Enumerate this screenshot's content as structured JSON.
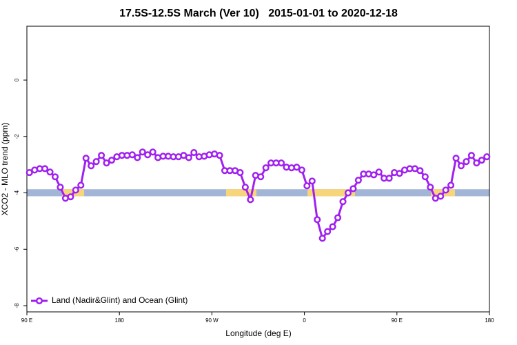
{
  "chart_data": {
    "type": "line",
    "title": "17.5S-12.5S March (Ver 10)   2015-01-01 to 2020-12-18",
    "x_label": "Longitude (deg E)",
    "y_label": "XCO2 - MLO trend (ppm)",
    "xlim": [
      90,
      540
    ],
    "ylim": [
      -8.22,
      1.91
    ],
    "xticks": [
      {
        "value": 90,
        "label": "90 E"
      },
      {
        "value": 180,
        "label": "180"
      },
      {
        "value": 270,
        "label": "90 W"
      },
      {
        "value": 360,
        "label": "0"
      },
      {
        "value": 450,
        "label": "90 E"
      },
      {
        "value": 540,
        "label": "180"
      }
    ],
    "yticks": [
      -8,
      -6,
      -4,
      -2,
      0
    ],
    "legend": "bottom-left",
    "surface_band": {
      "ylim": [
        -4.12,
        -3.87
      ],
      "ocean_color": "#a3b5d6",
      "land_color": "#f7d57a",
      "land_spans": [
        [
          124.2,
          145.7
        ],
        [
          283.8,
          313.3
        ],
        [
          363,
          409.2
        ],
        [
          483,
          506.5
        ]
      ]
    },
    "series": [
      {
        "name": "Land (Nadir&Glint) and Ocean (Glint)",
        "color": "#a020f0",
        "x": [
          92.5,
          97.5,
          102.5,
          107.5,
          112.5,
          117.5,
          122.5,
          127.5,
          132.5,
          137.5,
          142.5,
          147.5,
          152.5,
          157.5,
          162.5,
          167.5,
          172.5,
          177.5,
          182.5,
          187.5,
          192.5,
          197.5,
          202.5,
          207.5,
          212.5,
          217.5,
          222.5,
          227.5,
          232.5,
          237.5,
          242.5,
          247.5,
          252.5,
          257.5,
          262.5,
          267.5,
          272.5,
          277.5,
          282.5,
          287.5,
          292.5,
          297.5,
          302.5,
          307.5,
          312.5,
          317.5,
          322.5,
          327.5,
          332.5,
          337.5,
          342.5,
          347.5,
          352.5,
          357.5,
          362.5,
          367.5,
          372.5,
          377.5,
          382.5,
          387.5,
          392.5,
          397.5,
          402.5,
          407.5,
          412.5,
          417.5,
          422.5,
          427.5,
          432.5,
          437.5,
          442.5,
          447.5,
          452.5,
          457.5,
          462.5,
          467.5,
          472.5,
          477.5,
          482.5,
          487.5,
          492.5,
          497.5,
          502.5,
          507.5,
          512.5,
          517.5,
          522.5,
          527.5,
          532.5,
          537.5
        ],
        "values": [
          -3.28,
          -3.19,
          -3.14,
          -3.14,
          -3.26,
          -3.43,
          -3.8,
          -4.19,
          -4.14,
          -3.9,
          -3.73,
          -2.77,
          -3.04,
          -2.89,
          -2.67,
          -2.94,
          -2.84,
          -2.72,
          -2.67,
          -2.67,
          -2.65,
          -2.75,
          -2.55,
          -2.65,
          -2.55,
          -2.75,
          -2.7,
          -2.7,
          -2.72,
          -2.72,
          -2.67,
          -2.75,
          -2.57,
          -2.72,
          -2.7,
          -2.65,
          -2.62,
          -2.67,
          -3.21,
          -3.21,
          -3.21,
          -3.28,
          -3.8,
          -4.24,
          -3.38,
          -3.43,
          -3.11,
          -2.94,
          -2.94,
          -2.94,
          -3.09,
          -3.11,
          -3.09,
          -3.19,
          -3.75,
          -3.58,
          -4.95,
          -5.61,
          -5.37,
          -5.2,
          -4.88,
          -4.31,
          -4.0,
          -3.85,
          -3.55,
          -3.33,
          -3.33,
          -3.36,
          -3.26,
          -3.48,
          -3.48,
          -3.28,
          -3.31,
          -3.19,
          -3.14,
          -3.14,
          -3.21,
          -3.43,
          -3.8,
          -4.19,
          -4.12,
          -3.9,
          -3.73,
          -2.77,
          -3.04,
          -2.89,
          -2.67,
          -2.94,
          -2.84,
          -2.72
        ]
      }
    ]
  }
}
